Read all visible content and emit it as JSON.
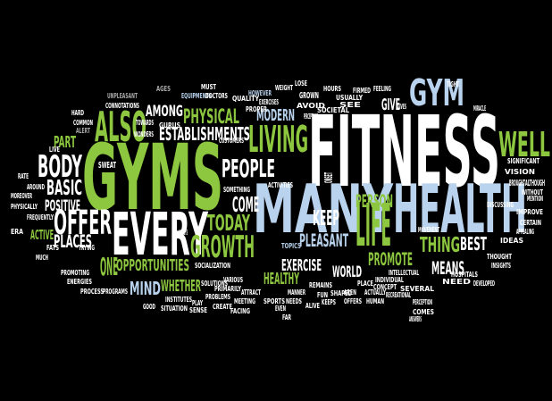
{
  "words": [
    "FITNESS",
    "GYMS",
    "HEALTH",
    "MANY",
    "EVERY",
    "WELL",
    "GYM",
    "LIFE",
    "ALSO",
    "BODY",
    "OFFER",
    "GROWTH",
    "PEOPLE",
    "LIVING",
    "PHYSICAL",
    "ESTABLISHMENTS",
    "BASIC",
    "POSITIVE",
    "PLACES",
    "ACTIVE",
    "PART",
    "TODAY",
    "COME",
    "KEEP",
    "PERSON",
    "PROMOTE",
    "THING",
    "BEST",
    "MEANS",
    "PLEASANT",
    "EXERCISE",
    "WORLD",
    "HEALTHY",
    "WHETHER",
    "MIND",
    "OPPORTUNITIES",
    "ONE",
    "AMONG",
    "MODERN",
    "GIVE",
    "AGES",
    "MUST",
    "EQUIPMENTS",
    "DOCTORS",
    "HOWEVER",
    "WEIGHT",
    "LOSE",
    "GROWN",
    "HOURS",
    "FIRMED",
    "FEELING",
    "TIGHT",
    "UNPLEASANT",
    "CONNOTATIONS",
    "HARD",
    "COMMON",
    "ALERT",
    "LIVE",
    "SWEAT",
    "AROUND",
    "RATE",
    "MOREOVER",
    "PHYSICALLY",
    "FREQUENTLY",
    "ERA",
    "FATS",
    "MUCH",
    "PROMOTING",
    "ENERGIES",
    "PROCESS",
    "PROGRAMS",
    "GOOD",
    "SITUATION",
    "INSTITUTES",
    "SENSE",
    "PLAY",
    "CREATE",
    "PROBLEMS",
    "FACING",
    "MEETING",
    "ATTRACT",
    "SOCIALIZATION",
    "SOLUTIONS",
    "VARIOUS",
    "PRIMARILY",
    "TOPICS",
    "NEEDS",
    "EVEN",
    "FAR",
    "ALIVE",
    "MANNER",
    "SPORTS",
    "REMAINS",
    "FUN",
    "SHAPED",
    "KEEPS",
    "AREN",
    "OFFERS",
    "HUMAN",
    "PLACE",
    "ACTUALLY",
    "CONCEPT",
    "INDIVIDUAL",
    "INTELLECTUAL",
    "RECREATIONAL",
    "SEVERAL",
    "PERCEPTION",
    "COMES",
    "ANSWERS",
    "NEED",
    "HOSPITALS",
    "DEVELOPED",
    "THOUGHT",
    "INSIGHTS",
    "IDEAS",
    "APPEALING",
    "CERTAIN",
    "IMPROVE",
    "MENTION",
    "WITHOUT",
    "BROUGHT",
    "ALTHOUGH",
    "VISION",
    "SIGNIFICANT",
    "DISCUSSING",
    "MOVEMENT",
    "MIRACLE",
    "GIVES",
    "SEE",
    "USUALLY",
    "SOCIETAL",
    "PERCEPTIONS",
    "AVOID",
    "EXERCISES",
    "PROPER",
    "QUALITY",
    "CUSTOMERS",
    "SOMETHING",
    "ACTIVITIES",
    "TOWARDS",
    "WONDERS",
    "GURUS",
    "TRYING",
    "ASPECTS",
    "ONSET",
    "GET",
    "GO"
  ]
}
